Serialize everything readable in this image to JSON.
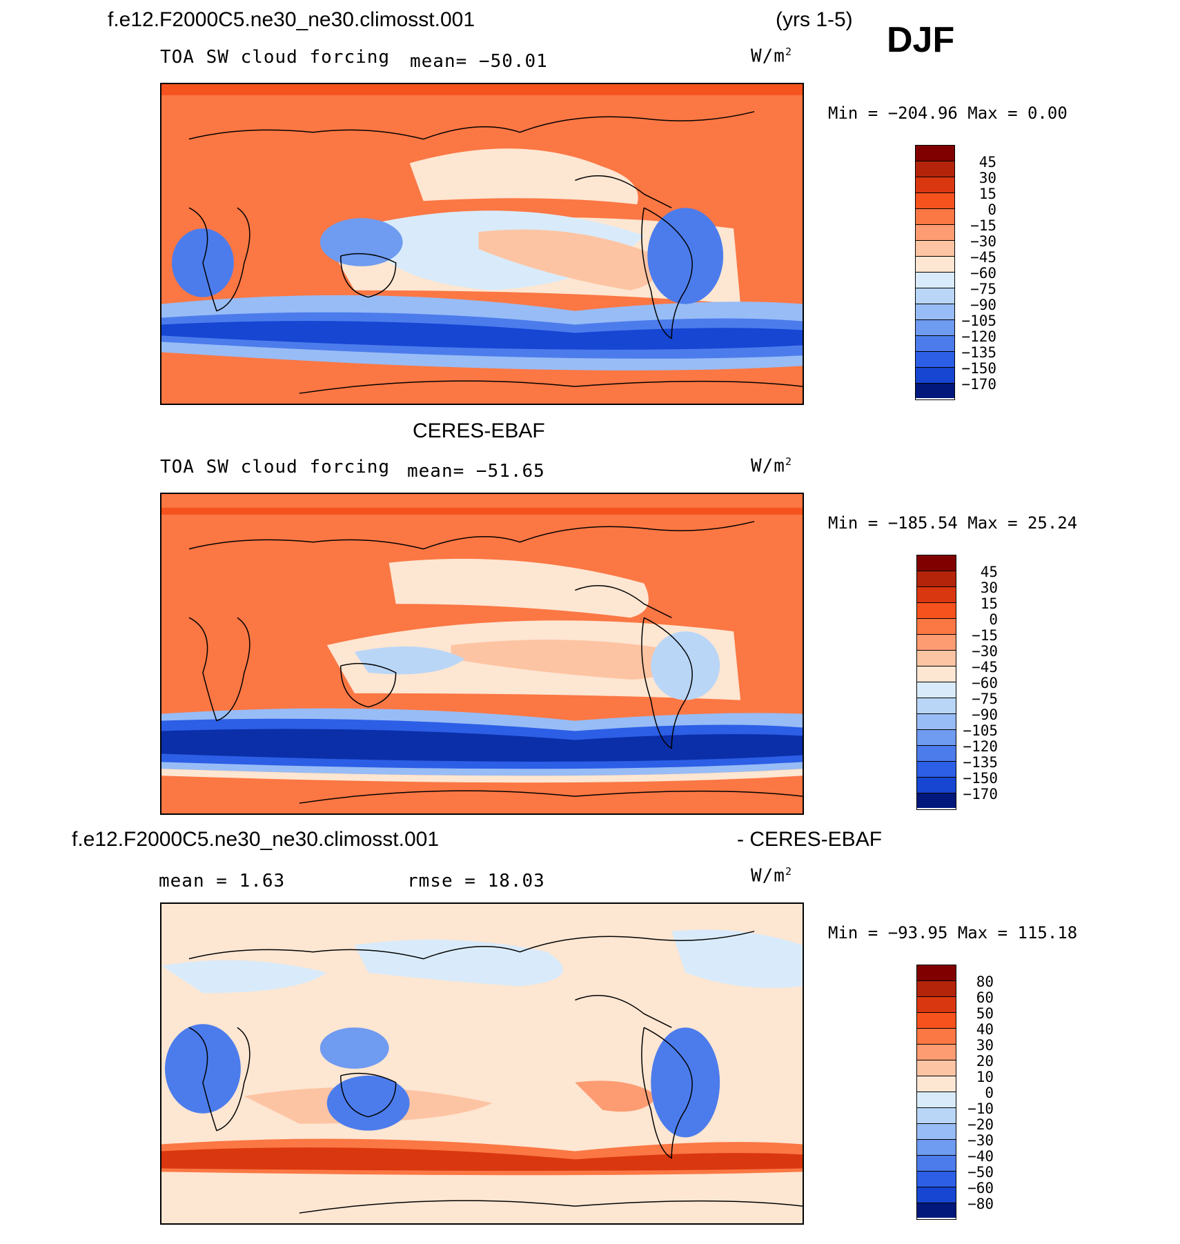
{
  "header": {
    "case_name": "f.e12.F2000C5.ne30_ne30.climosst.001",
    "years": "(yrs 1-5)",
    "season": "DJF"
  },
  "colors": {
    "scale_20": [
      "#800000",
      "#b3240a",
      "#d9370f",
      "#f5521e",
      "#fb7744",
      "#fd9c72",
      "#fdc4a3",
      "#fde6d2",
      "#d9ebfa",
      "#b9d6f7",
      "#98bcf5",
      "#6f9bf0",
      "#4c7cec",
      "#2c5ee6",
      "#1646d2",
      "#0b2fa8",
      "#02187b"
    ]
  },
  "panels": [
    {
      "id": "model",
      "title": "",
      "variable": "TOA SW cloud forcing",
      "stat": "mean= −50.01",
      "units": "W/m",
      "units_sup": "2",
      "minmax": "Min = −204.96 Max =   0.00",
      "colorbar_labels": [
        "45",
        "30",
        "15",
        "0",
        "−15",
        "−30",
        "−45",
        "−60",
        "−75",
        "−90",
        "−105",
        "−120",
        "−135",
        "−150",
        "−170"
      ]
    },
    {
      "id": "obs",
      "title": "CERES-EBAF",
      "variable": "TOA SW cloud forcing",
      "stat": "mean= −51.65",
      "units": "W/m",
      "units_sup": "2",
      "minmax": "Min = −185.54 Max =  25.24",
      "colorbar_labels": [
        "45",
        "30",
        "15",
        "0",
        "−15",
        "−30",
        "−45",
        "−60",
        "−75",
        "−90",
        "−105",
        "−120",
        "−135",
        "−150",
        "−170"
      ]
    },
    {
      "id": "diff",
      "title_left": "f.e12.F2000C5.ne30_ne30.climosst.001",
      "title_right": "- CERES-EBAF",
      "stat_mean": "mean =    1.63",
      "stat_rmse": "rmse =   18.03",
      "units": "W/m",
      "units_sup": "2",
      "minmax": "Min = −93.95 Max = 115.18",
      "colorbar_labels": [
        "80",
        "60",
        "50",
        "40",
        "30",
        "20",
        "10",
        "0",
        "−10",
        "−20",
        "−30",
        "−40",
        "−50",
        "−60",
        "−80"
      ]
    }
  ]
}
